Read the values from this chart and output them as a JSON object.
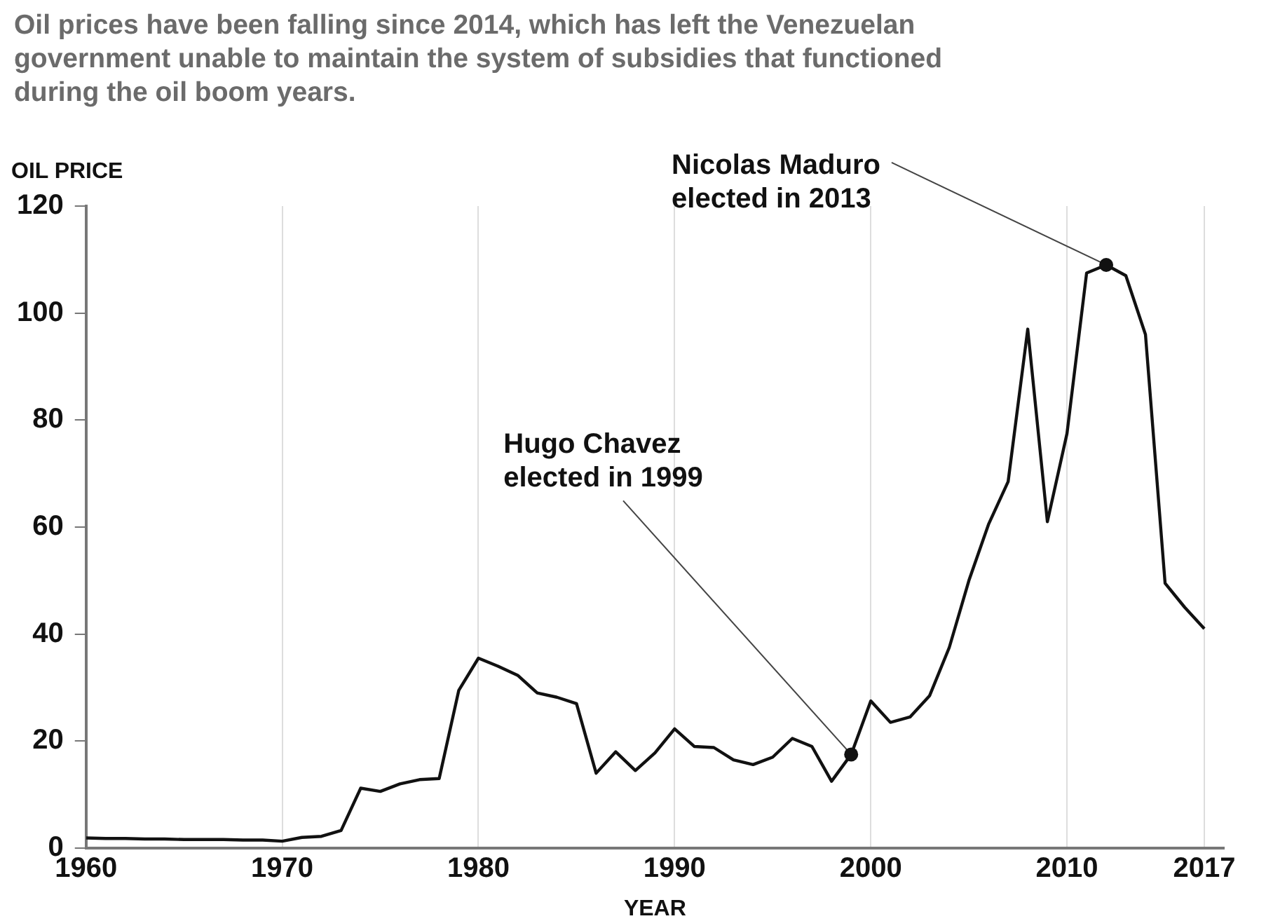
{
  "chart_data": {
    "type": "line",
    "title": "Oil prices have been falling since 2014, which has left the Venezuelan government unable to maintain the system of subsidies that functioned during the oil boom years.",
    "ylabel": "OIL PRICE",
    "xlabel": "YEAR",
    "x": [
      1960,
      1961,
      1962,
      1963,
      1964,
      1965,
      1966,
      1967,
      1968,
      1969,
      1970,
      1971,
      1972,
      1973,
      1974,
      1975,
      1976,
      1977,
      1978,
      1979,
      1980,
      1981,
      1982,
      1983,
      1984,
      1985,
      1986,
      1987,
      1988,
      1989,
      1990,
      1991,
      1992,
      1993,
      1994,
      1995,
      1996,
      1997,
      1998,
      1999,
      2000,
      2001,
      2002,
      2003,
      2004,
      2005,
      2006,
      2007,
      2008,
      2009,
      2010,
      2011,
      2012,
      2013,
      2014,
      2015,
      2016,
      2017
    ],
    "series": [
      {
        "color": "#111111",
        "values": [
          1.9,
          1.8,
          1.8,
          1.7,
          1.7,
          1.6,
          1.6,
          1.6,
          1.5,
          1.5,
          1.3,
          2.0,
          2.2,
          3.3,
          11.2,
          10.6,
          12.0,
          12.8,
          13.0,
          29.5,
          35.5,
          34.0,
          32.3,
          29.0,
          28.2,
          27.0,
          14.0,
          18.0,
          14.5,
          17.8,
          22.3,
          19.0,
          18.8,
          16.5,
          15.6,
          17.0,
          20.5,
          19.0,
          12.5,
          17.5,
          27.5,
          23.5,
          24.5,
          28.5,
          37.5,
          50,
          60.5,
          68.5,
          97,
          61,
          77.5,
          107.5,
          109,
          107,
          96,
          49.5,
          45,
          41
        ]
      }
    ],
    "xlim": [
      1960,
      2018
    ],
    "xticks": [
      1960,
      1970,
      1980,
      1990,
      2000,
      2010,
      2017
    ],
    "ylim": [
      0,
      120
    ],
    "yticks": [
      0,
      20,
      40,
      60,
      80,
      100,
      120
    ],
    "grid": "x",
    "legend": false,
    "marker": "none",
    "line_style": "solid",
    "annotations": [
      {
        "text": "Hugo Chavez\nelected in 1999",
        "x": 1999,
        "y": 17.5
      },
      {
        "text": "Nicolas Maduro\nelected in 2013",
        "x": 2012,
        "y": 109
      }
    ]
  }
}
